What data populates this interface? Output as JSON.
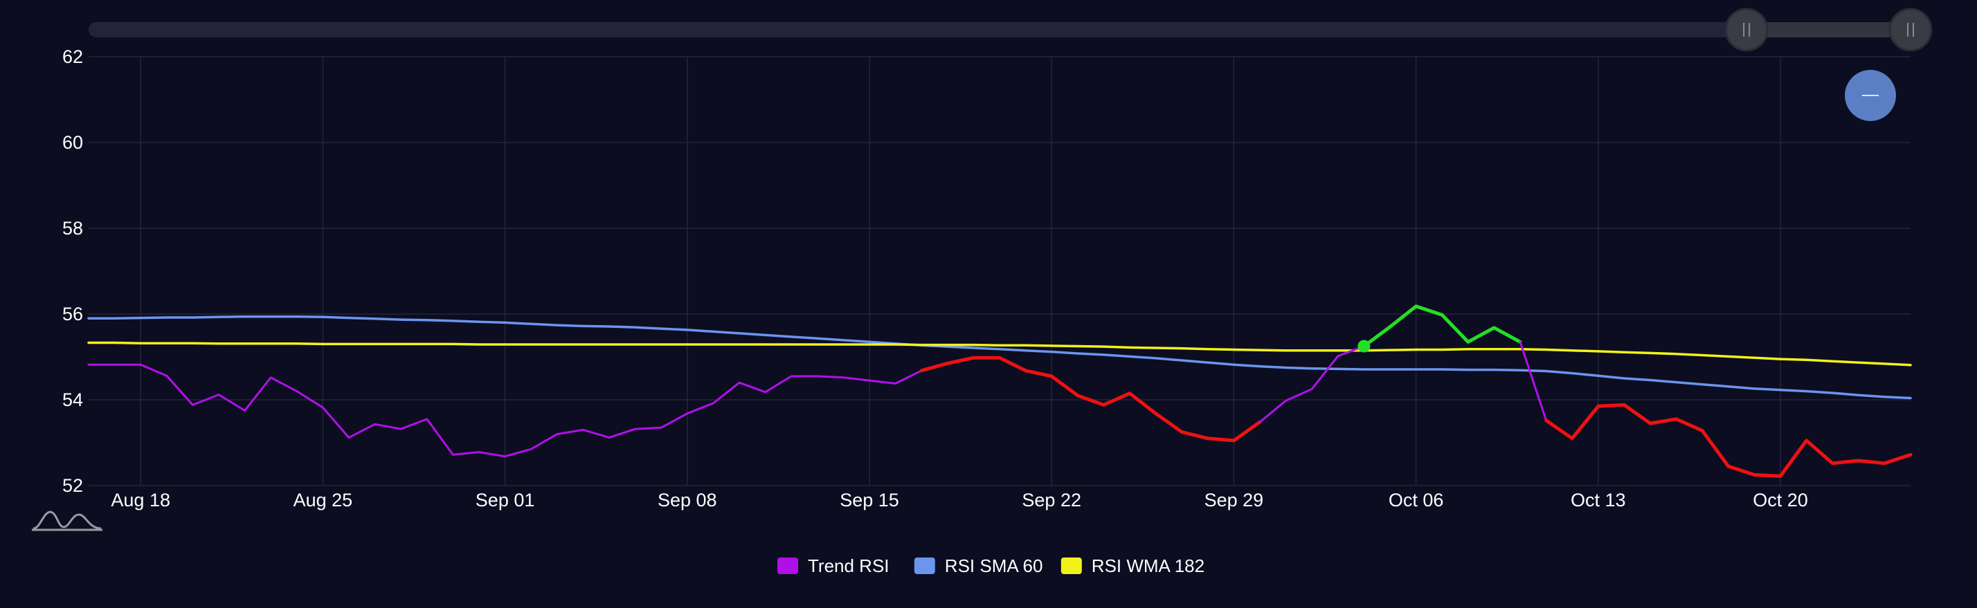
{
  "slider": {
    "track_color": "#2a2b3a",
    "range_start": 0.91,
    "range_end": 1.0
  },
  "zoom_button": {
    "icon": "minus-icon",
    "color": "#5b7fc4"
  },
  "logo": {
    "icon": "mountain-logo-icon"
  },
  "chart_data": {
    "type": "line",
    "title": "",
    "xlabel": "",
    "ylabel": "",
    "ylim": [
      52,
      62
    ],
    "yticks": [
      "52",
      "54",
      "56",
      "58",
      "60",
      "62"
    ],
    "xticks": [
      {
        "date": "2025-08-18",
        "label": "Aug 18"
      },
      {
        "date": "2025-08-25",
        "label": "Aug 25"
      },
      {
        "date": "2025-09-01",
        "label": "Sep 01"
      },
      {
        "date": "2025-09-08",
        "label": "Sep 08"
      },
      {
        "date": "2025-09-15",
        "label": "Sep 15"
      },
      {
        "date": "2025-09-22",
        "label": "Sep 22"
      },
      {
        "date": "2025-09-29",
        "label": "Sep 29"
      },
      {
        "date": "2025-10-06",
        "label": "Oct 06"
      },
      {
        "date": "2025-10-13",
        "label": "Oct 13"
      },
      {
        "date": "2025-10-20",
        "label": "Oct 20"
      }
    ],
    "x_range": [
      "2025-08-16",
      "2025-10-25"
    ],
    "grid": true,
    "legend_position": "bottom-center",
    "dates": [
      "2025-08-16",
      "2025-08-17",
      "2025-08-18",
      "2025-08-19",
      "2025-08-20",
      "2025-08-21",
      "2025-08-22",
      "2025-08-23",
      "2025-08-24",
      "2025-08-25",
      "2025-08-26",
      "2025-08-27",
      "2025-08-28",
      "2025-08-29",
      "2025-08-30",
      "2025-08-31",
      "2025-09-01",
      "2025-09-02",
      "2025-09-03",
      "2025-09-04",
      "2025-09-05",
      "2025-09-06",
      "2025-09-07",
      "2025-09-08",
      "2025-09-09",
      "2025-09-10",
      "2025-09-11",
      "2025-09-12",
      "2025-09-13",
      "2025-09-14",
      "2025-09-15",
      "2025-09-16",
      "2025-09-17",
      "2025-09-18",
      "2025-09-19",
      "2025-09-20",
      "2025-09-21",
      "2025-09-22",
      "2025-09-23",
      "2025-09-24",
      "2025-09-25",
      "2025-09-26",
      "2025-09-27",
      "2025-09-28",
      "2025-09-29",
      "2025-09-30",
      "2025-10-01",
      "2025-10-02",
      "2025-10-03",
      "2025-10-04",
      "2025-10-05",
      "2025-10-06",
      "2025-10-07",
      "2025-10-08",
      "2025-10-09",
      "2025-10-10",
      "2025-10-11",
      "2025-10-12",
      "2025-10-13",
      "2025-10-14",
      "2025-10-15",
      "2025-10-16",
      "2025-10-17",
      "2025-10-18",
      "2025-10-19",
      "2025-10-20",
      "2025-10-21",
      "2025-10-22",
      "2025-10-23",
      "2025-10-24",
      "2025-10-25"
    ],
    "series": [
      {
        "name": "Trend RSI",
        "color": "#b010e8",
        "up_color": "#22e022",
        "down_color": "#ee1111",
        "values": [
          54.82,
          54.82,
          54.82,
          54.56,
          53.88,
          54.12,
          53.75,
          54.52,
          54.2,
          53.82,
          53.12,
          53.43,
          53.32,
          53.55,
          52.72,
          52.78,
          52.68,
          52.85,
          53.2,
          53.3,
          53.12,
          53.32,
          53.35,
          53.68,
          53.92,
          54.4,
          54.18,
          54.55,
          54.55,
          54.52,
          54.45,
          54.38,
          54.68,
          54.85,
          54.98,
          54.98,
          54.68,
          54.55,
          54.1,
          53.88,
          54.15,
          53.68,
          53.25,
          53.1,
          53.05,
          53.48,
          53.98,
          54.25,
          55.02,
          55.25,
          55.7,
          56.18,
          55.98,
          55.35,
          55.68,
          55.35,
          53.52,
          53.1,
          53.85,
          53.88,
          53.45,
          53.55,
          53.28,
          52.45,
          52.25,
          52.22,
          53.05,
          52.52,
          52.58,
          52.52,
          52.72
        ],
        "segments": [
          {
            "from": "2025-08-16",
            "to": "2025-09-17",
            "state": "neutral"
          },
          {
            "from": "2025-09-17",
            "to": "2025-09-30",
            "state": "down"
          },
          {
            "from": "2025-09-30",
            "to": "2025-10-04",
            "state": "neutral"
          },
          {
            "from": "2025-10-04",
            "to": "2025-10-10",
            "state": "up"
          },
          {
            "from": "2025-10-10",
            "to": "2025-10-11",
            "state": "neutral"
          },
          {
            "from": "2025-10-11",
            "to": "2025-10-25",
            "state": "down"
          }
        ],
        "marker": {
          "date": "2025-10-04",
          "value": 55.25,
          "color": "#22e022"
        }
      },
      {
        "name": "RSI SMA 60",
        "color": "#6b95ee",
        "values": [
          55.9,
          55.9,
          55.91,
          55.92,
          55.92,
          55.93,
          55.94,
          55.94,
          55.94,
          55.93,
          55.91,
          55.89,
          55.87,
          55.86,
          55.84,
          55.82,
          55.8,
          55.77,
          55.74,
          55.72,
          55.71,
          55.69,
          55.66,
          55.63,
          55.59,
          55.55,
          55.51,
          55.47,
          55.43,
          55.39,
          55.35,
          55.31,
          55.27,
          55.24,
          55.21,
          55.18,
          55.15,
          55.12,
          55.08,
          55.05,
          55.01,
          54.97,
          54.92,
          54.87,
          54.82,
          54.78,
          54.75,
          54.73,
          54.72,
          54.71,
          54.71,
          54.71,
          54.71,
          54.7,
          54.7,
          54.69,
          54.67,
          54.62,
          54.56,
          54.5,
          54.46,
          54.41,
          54.36,
          54.31,
          54.26,
          54.23,
          54.2,
          54.16,
          54.11,
          54.07,
          54.04
        ]
      },
      {
        "name": "RSI WMA 182",
        "color": "#f2f21a",
        "values": [
          55.33,
          55.33,
          55.32,
          55.32,
          55.32,
          55.31,
          55.31,
          55.31,
          55.31,
          55.3,
          55.3,
          55.3,
          55.3,
          55.3,
          55.3,
          55.29,
          55.29,
          55.29,
          55.29,
          55.29,
          55.29,
          55.29,
          55.29,
          55.29,
          55.29,
          55.29,
          55.29,
          55.29,
          55.29,
          55.29,
          55.29,
          55.29,
          55.28,
          55.28,
          55.28,
          55.27,
          55.27,
          55.26,
          55.25,
          55.24,
          55.22,
          55.21,
          55.2,
          55.18,
          55.17,
          55.16,
          55.15,
          55.15,
          55.15,
          55.15,
          55.16,
          55.17,
          55.17,
          55.18,
          55.18,
          55.18,
          55.17,
          55.15,
          55.13,
          55.11,
          55.09,
          55.07,
          55.04,
          55.01,
          54.98,
          54.95,
          54.93,
          54.9,
          54.87,
          54.84,
          54.81
        ]
      }
    ]
  }
}
